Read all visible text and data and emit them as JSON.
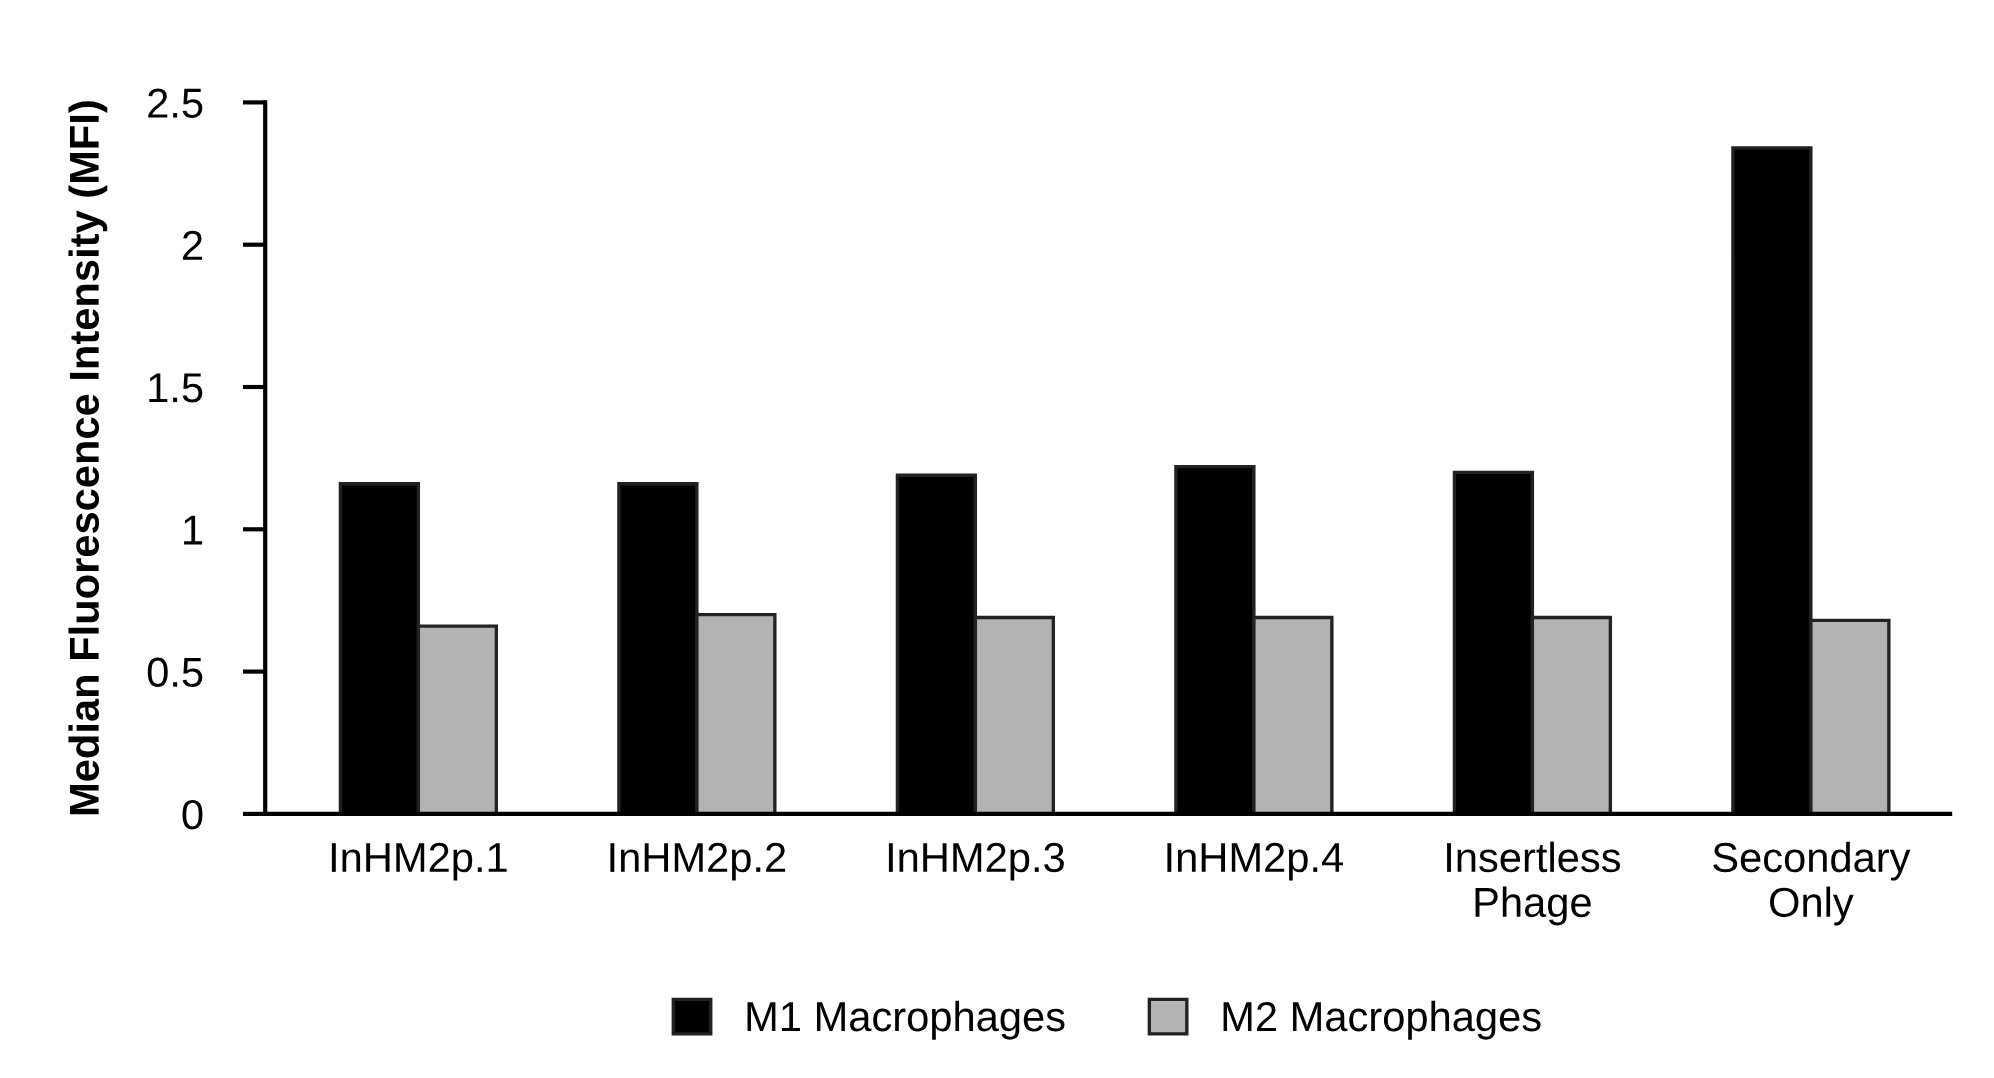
{
  "chart_data": {
    "type": "bar",
    "ylabel": "Median Fluorescence Intensity (MFI)",
    "categories": [
      "InHM2p.1",
      "InHM2p.2",
      "InHM2p.3",
      "InHM2p.4",
      "Insertless\nPhage",
      "Secondary\nOnly"
    ],
    "series": [
      {
        "name": "M1 Macrophages",
        "color": "#000000",
        "values": [
          1.16,
          1.16,
          1.19,
          1.22,
          1.2,
          2.34
        ]
      },
      {
        "name": "M2 Macrophages",
        "color": "#b3b3b3",
        "values": [
          0.66,
          0.7,
          0.69,
          0.69,
          0.69,
          0.68
        ]
      }
    ],
    "ylim": [
      0,
      2.5
    ],
    "yticks": [
      0,
      0.5,
      1,
      1.5,
      2,
      2.5
    ],
    "grid": false,
    "legend": "bottom"
  }
}
